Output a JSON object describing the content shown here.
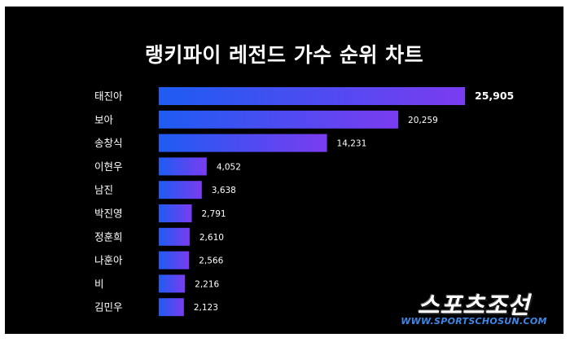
{
  "chart_data": {
    "type": "bar",
    "orientation": "horizontal",
    "title": "랭키파이 레전드 가수 순위 차트",
    "categories": [
      "태진아",
      "보아",
      "송창식",
      "이현우",
      "남진",
      "박진영",
      "정훈희",
      "나훈아",
      "비",
      "김민우"
    ],
    "values": [
      25905,
      20259,
      14231,
      4052,
      3638,
      2791,
      2610,
      2566,
      2216,
      2123
    ],
    "value_labels": [
      "25,905",
      "20,259",
      "14,231",
      "4,052",
      "3,638",
      "2,791",
      "2,610",
      "2,566",
      "2,216",
      "2,123"
    ],
    "xlim": [
      0,
      25905
    ],
    "grid": false,
    "legend": "none",
    "colors": {
      "bar_start": "#1e5cf2",
      "bar_end": "#7a3cf0",
      "background": "#000000",
      "text": "#ffffff"
    }
  },
  "watermark": {
    "korean": "스포츠조선",
    "english": "WWW.SPORTSCHOSUN.COM"
  }
}
